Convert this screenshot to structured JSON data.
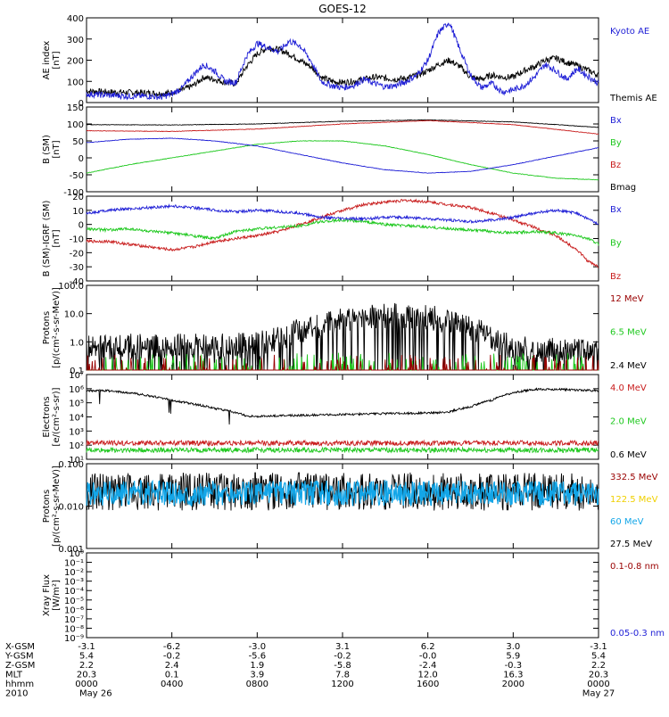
{
  "title": "GOES-12",
  "colors": {
    "black": "#000000",
    "blue": "#1f1fd6",
    "red": "#c81c1c",
    "green": "#1ec81e",
    "darkred": "#990000",
    "gold": "#f0d000",
    "cyan": "#13a6e8"
  },
  "chart_data": [
    {
      "type": "line",
      "ylabel": "AE index\n[nT]",
      "ylim": [
        0,
        400
      ],
      "yticks": [
        "0",
        "100",
        "200",
        "300",
        "400"
      ],
      "legend": [
        {
          "label": "Kyoto AE",
          "color": "blue"
        },
        {
          "label": "Themis AE",
          "color": "black"
        }
      ],
      "series": [
        {
          "name": "Themis AE",
          "color": "black",
          "x": [
            0,
            1,
            2,
            3,
            3.5,
            4,
            4.5,
            5,
            5.5,
            6,
            6.5,
            7,
            7.5,
            8,
            8.5,
            9,
            9.5,
            10,
            10.5,
            11,
            11.5,
            12,
            12.5,
            13,
            13.5,
            14,
            14.5,
            15,
            15.5,
            16,
            16.5,
            17,
            17.5,
            18,
            18.5,
            19,
            19.5,
            20,
            20.5,
            21,
            21.5,
            22,
            22.5,
            23,
            24
          ],
          "y": [
            55,
            50,
            48,
            45,
            42,
            48,
            60,
            80,
            120,
            110,
            95,
            90,
            170,
            230,
            260,
            250,
            230,
            200,
            170,
            120,
            100,
            95,
            100,
            110,
            120,
            115,
            110,
            115,
            130,
            150,
            180,
            200,
            170,
            120,
            110,
            130,
            120,
            120,
            150,
            170,
            200,
            210,
            190,
            175,
            130
          ]
        },
        {
          "name": "Kyoto AE",
          "color": "blue",
          "x": [
            0,
            1,
            2,
            3,
            3.5,
            4,
            4.5,
            5,
            5.5,
            6,
            6.5,
            7,
            7.5,
            8,
            8.5,
            9,
            9.5,
            10,
            10.5,
            11,
            11.5,
            12,
            12.5,
            13,
            13.5,
            14,
            14.5,
            15,
            15.5,
            16,
            16.5,
            17,
            17.5,
            18,
            18.5,
            19,
            19.5,
            20,
            20.5,
            21,
            21.5,
            22,
            22.5,
            23,
            24
          ],
          "y": [
            40,
            35,
            30,
            30,
            25,
            40,
            70,
            130,
            180,
            150,
            100,
            95,
            220,
            280,
            260,
            240,
            290,
            270,
            200,
            100,
            80,
            70,
            80,
            110,
            90,
            75,
            80,
            100,
            130,
            200,
            330,
            380,
            250,
            130,
            70,
            90,
            50,
            60,
            80,
            120,
            180,
            150,
            110,
            160,
            90
          ]
        }
      ]
    },
    {
      "type": "line",
      "ylabel": "B (SM)\n[nT]",
      "ylim": [
        -100,
        150
      ],
      "yticks": [
        "-100",
        "-50",
        "0",
        "50",
        "100",
        "150"
      ],
      "legend": [
        {
          "label": "Bx",
          "color": "blue"
        },
        {
          "label": "By",
          "color": "green"
        },
        {
          "label": "Bz",
          "color": "red"
        },
        {
          "label": "Bmag",
          "color": "black"
        }
      ],
      "series": [
        {
          "name": "Bmag",
          "color": "black",
          "x": [
            0,
            4,
            8,
            12,
            16,
            20,
            24
          ],
          "y": [
            98,
            97,
            100,
            108,
            112,
            106,
            90
          ]
        },
        {
          "name": "Bz",
          "color": "red",
          "x": [
            0,
            4,
            8,
            12,
            16,
            20,
            24
          ],
          "y": [
            80,
            78,
            85,
            100,
            110,
            98,
            70
          ]
        },
        {
          "name": "By",
          "color": "green",
          "x": [
            0,
            2,
            4,
            6,
            8,
            10,
            12,
            14,
            16,
            18,
            20,
            22,
            24
          ],
          "y": [
            -45,
            -20,
            0,
            20,
            40,
            50,
            50,
            35,
            10,
            -20,
            -45,
            -60,
            -65
          ]
        },
        {
          "name": "Bx",
          "color": "blue",
          "x": [
            0,
            2,
            4,
            6,
            8,
            10,
            12,
            14,
            16,
            18,
            20,
            22,
            24
          ],
          "y": [
            45,
            55,
            58,
            50,
            35,
            10,
            -15,
            -35,
            -45,
            -40,
            -20,
            5,
            30
          ]
        }
      ]
    },
    {
      "type": "line",
      "ylabel": "B (SM)-IGRF (SM)\n[nT]",
      "ylim": [
        -40,
        20
      ],
      "yticks": [
        "-40",
        "-30",
        "-20",
        "-10",
        "0",
        "10",
        "20"
      ],
      "legend": [
        {
          "label": "Bx",
          "color": "blue"
        },
        {
          "label": "By",
          "color": "green"
        },
        {
          "label": "Bz",
          "color": "red"
        }
      ],
      "series": [
        {
          "name": "Bz",
          "color": "red",
          "x": [
            0,
            1,
            2,
            3,
            4,
            5,
            6,
            7,
            8,
            9,
            10,
            11,
            12,
            13,
            14,
            15,
            16,
            17,
            18,
            19,
            20,
            21,
            22,
            23,
            23.5,
            24
          ],
          "y": [
            -12,
            -12,
            -14,
            -16,
            -18,
            -16,
            -12,
            -10,
            -8,
            -5,
            0,
            5,
            10,
            14,
            16,
            17,
            16,
            14,
            12,
            8,
            3,
            -2,
            -8,
            -18,
            -26,
            -30
          ]
        },
        {
          "name": "By",
          "color": "green",
          "x": [
            0,
            1,
            2,
            3,
            4,
            5,
            6,
            7,
            8,
            9,
            10,
            11,
            12,
            13,
            14,
            15,
            16,
            17,
            18,
            19,
            20,
            21,
            22,
            23,
            23.5,
            24
          ],
          "y": [
            -3,
            -4,
            -3,
            -5,
            -6,
            -8,
            -10,
            -5,
            -3,
            -2,
            -1,
            2,
            3,
            2,
            0,
            -1,
            -2,
            -3,
            -4,
            -5,
            -6,
            -5,
            -6,
            -8,
            -10,
            -14
          ]
        },
        {
          "name": "Bx",
          "color": "blue",
          "x": [
            0,
            1,
            2,
            3,
            4,
            5,
            6,
            7,
            8,
            9,
            10,
            11,
            12,
            13,
            14,
            15,
            16,
            17,
            18,
            19,
            20,
            21,
            22,
            23,
            23.5,
            24
          ],
          "y": [
            8,
            10,
            11,
            12,
            13,
            12,
            10,
            9,
            10,
            9,
            8,
            5,
            4,
            4,
            5,
            5,
            4,
            3,
            2,
            3,
            5,
            8,
            10,
            8,
            4,
            0
          ]
        }
      ]
    },
    {
      "type": "line",
      "ylabel": "Protons\n[p/(cm²-s-sr-MeV)]",
      "ylim": [
        0.1,
        100
      ],
      "yscale": "log",
      "yticks": [
        "0.1",
        "1.0",
        "10.0",
        "100.0"
      ],
      "legend": [
        {
          "label": "12 MeV",
          "color": "darkred"
        },
        {
          "label": "6.5 MeV",
          "color": "green"
        },
        {
          "label": "2.4 MeV",
          "color": "black"
        }
      ],
      "series": [
        {
          "name": "2.4 MeV",
          "color": "black",
          "x": [
            0,
            2,
            4,
            6,
            8,
            9,
            10,
            11,
            12,
            13,
            14,
            15,
            16,
            17,
            18,
            19,
            20,
            22,
            24
          ],
          "y": [
            0.6,
            0.7,
            0.7,
            0.7,
            0.8,
            1.2,
            2.5,
            4.0,
            6.0,
            7.5,
            8.5,
            8.5,
            7.5,
            5.0,
            3.0,
            1.2,
            0.6,
            0.5,
            0.5
          ]
        },
        {
          "name": "6.5 MeV",
          "color": "green",
          "x": [
            0,
            24
          ],
          "y": [
            0.13,
            0.13
          ]
        },
        {
          "name": "12 MeV",
          "color": "darkred",
          "x": [
            0,
            24
          ],
          "y": [
            0.11,
            0.11
          ]
        }
      ]
    },
    {
      "type": "line",
      "ylabel": "Electrons\n[e/(cm²-s-sr)]",
      "ylim": [
        10,
        10000000
      ],
      "yscale": "log",
      "yticks": [
        "10¹",
        "10²",
        "10³",
        "10⁴",
        "10⁵",
        "10⁶",
        "10⁷"
      ],
      "legend": [
        {
          "label": "4.0 MeV",
          "color": "red"
        },
        {
          "label": "2.0 MeV",
          "color": "green"
        },
        {
          "label": "0.6 MeV",
          "color": "black"
        }
      ],
      "series": [
        {
          "name": "0.6 MeV",
          "color": "black",
          "x": [
            0,
            1,
            2,
            3,
            4,
            5,
            6,
            7,
            7.5,
            8,
            10,
            12,
            14,
            16,
            17,
            18,
            19,
            20,
            21,
            22,
            23,
            24
          ],
          "y": [
            700000,
            700000,
            500000,
            300000,
            150000,
            80000,
            40000,
            20000,
            12000,
            11000,
            13000,
            15000,
            17000,
            19000,
            22000,
            50000,
            150000,
            500000,
            900000,
            900000,
            800000,
            700000
          ]
        },
        {
          "name": "4.0 MeV",
          "color": "red",
          "x": [
            0,
            24
          ],
          "y": [
            140,
            140
          ]
        },
        {
          "name": "2.0 MeV",
          "color": "green",
          "x": [
            0,
            24
          ],
          "y": [
            45,
            45
          ]
        }
      ]
    },
    {
      "type": "line",
      "ylabel": "Protons\n[p/(cm²-s-sr-MeV)]",
      "ylim": [
        0.001,
        0.1
      ],
      "yscale": "log",
      "yticks": [
        "0.001",
        "0.010",
        "0.100"
      ],
      "legend": [
        {
          "label": "332.5 MeV",
          "color": "darkred"
        },
        {
          "label": "122.5 MeV",
          "color": "gold"
        },
        {
          "label": "60 MeV",
          "color": "cyan"
        },
        {
          "label": "27.5 MeV",
          "color": "black"
        }
      ],
      "series": [
        {
          "name": "27.5 MeV",
          "color": "black",
          "x": [
            0,
            24
          ],
          "y": [
            0.022,
            0.022
          ]
        },
        {
          "name": "60 MeV",
          "color": "cyan",
          "x": [
            0,
            24
          ],
          "y": [
            0.02,
            0.02
          ]
        }
      ]
    },
    {
      "type": "line",
      "ylabel": "Xray Flux\n[W/m²]",
      "ylim": [
        1e-09,
        1
      ],
      "yscale": "log",
      "yticks": [
        "10⁻⁹",
        "10⁻⁸",
        "10⁻⁷",
        "10⁻⁶",
        "10⁻⁵",
        "10⁻⁴",
        "10⁻³",
        "10⁻²",
        "10⁻¹",
        "10⁰"
      ],
      "legend": [
        {
          "label": "0.1-0.8 nm",
          "color": "darkred"
        },
        {
          "label": "0.05-0.3 nm",
          "color": "blue"
        }
      ],
      "series": []
    }
  ],
  "xaxis": {
    "ticks_hours": [
      0,
      4,
      8,
      12,
      16,
      20,
      24
    ],
    "rows": [
      {
        "label": "X-GSM",
        "values": [
          "-3.1",
          "-6.2",
          "-3.0",
          "3.1",
          "6.2",
          "3.0",
          "-3.1"
        ]
      },
      {
        "label": "Y-GSM",
        "values": [
          "5.4",
          "-0.2",
          "-5.6",
          "-0.2",
          "-0.0",
          "5.9",
          "5.4"
        ]
      },
      {
        "label": "Z-GSM",
        "values": [
          "2.2",
          "2.4",
          "1.9",
          "-5.8",
          "-2.4",
          "-0.3",
          "2.2"
        ]
      },
      {
        "label": "MLT",
        "values": [
          "20.3",
          "0.1",
          "3.9",
          "7.8",
          "12.0",
          "16.3",
          "20.3"
        ]
      },
      {
        "label": "hhmm",
        "values": [
          "0000",
          "0400",
          "0800",
          "1200",
          "1600",
          "2000",
          "0000"
        ]
      },
      {
        "label": "2010",
        "values": [
          "May 26",
          "",
          "",
          "",
          "",
          "",
          "May 27"
        ]
      }
    ]
  }
}
